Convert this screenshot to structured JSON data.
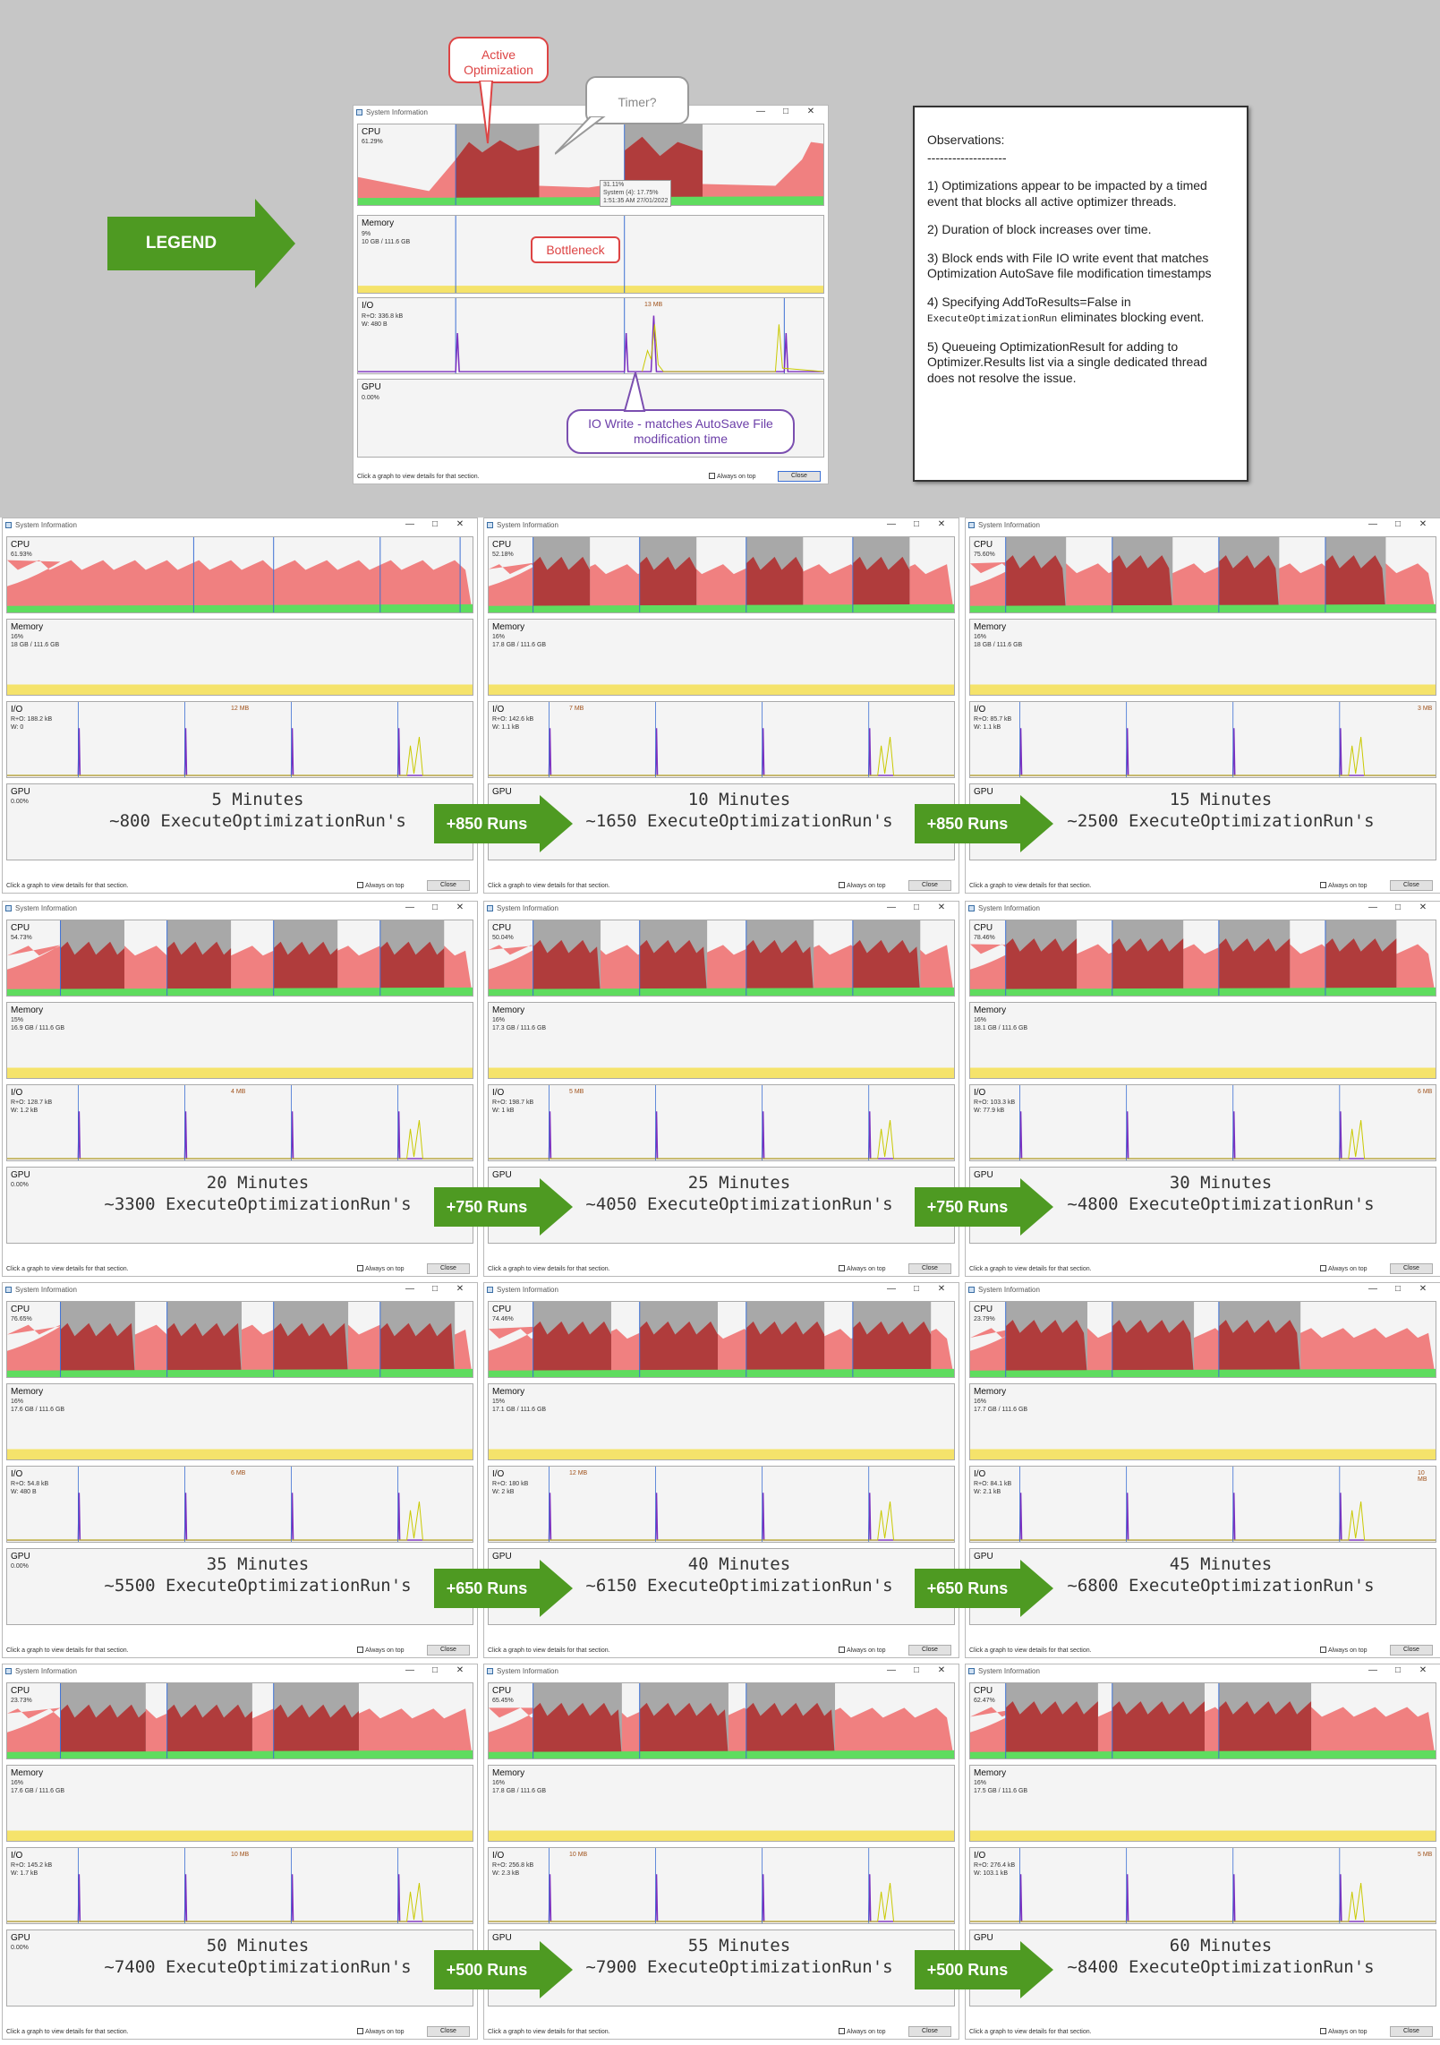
{
  "legend": {
    "label": "LEGEND",
    "window_title": "System Information",
    "cpu_label": "CPU",
    "cpu_value": "61.29%",
    "memory_label": "Memory",
    "memory_value": "9%",
    "memory_detail": "10 GB / 111.6 GB",
    "io_label": "I/O",
    "io_read": "R+O: 336.8 kB",
    "io_write": "W: 480 B",
    "io_peak": "13 MB",
    "gpu_label": "GPU",
    "gpu_value": "0.00%",
    "tooltip_line1": "31.11%",
    "tooltip_line2": "System (4): 17.75%",
    "tooltip_line3": "1:51:35 AM 27/01/2022",
    "footer_hint": "Click a graph to view details for that section.",
    "always_on_top": "Always on top",
    "close_label": "Close",
    "callout_active": "Active\nOptimization",
    "callout_timer": "Timer?",
    "callout_bottleneck": "Bottleneck",
    "callout_io": "IO Write - matches AutoSave File\nmodification time"
  },
  "observations": {
    "title": "Observations:",
    "divider": "-------------------",
    "item1": "1) Optimizations appear to be impacted by a timed event that blocks all active optimizer threads.",
    "item2": "2) Duration of block increases over time.",
    "item3": "3) Block ends with File IO write event that matches Optimization AutoSave file modification timestamps",
    "item4_pre": "4) Specifying AddToResults=False in",
    "item4_code": "ExecuteOptimizationRun",
    "item4_post": " eliminates blocking event.",
    "item5": "5) Queueing OptimizationResult for adding to Optimizer.Results list via a single dedicated thread does not resolve the issue."
  },
  "panel_labels": {
    "window_title": "System Information",
    "cpu": "CPU",
    "memory": "Memory",
    "io": "I/O",
    "gpu": "GPU",
    "footer_hint": "Click a graph to view details for that section.",
    "always_on_top": "Always on top",
    "close": "Close"
  },
  "snapshots": [
    {
      "minutes": "5 Minutes",
      "runs": "~800 ExecuteOptimizationRun's",
      "cpu": "61.93%",
      "mem_pct": "16%",
      "mem_detail": "18 GB / 111.6 GB",
      "io_read": "R+O: 188.2 kB",
      "io_write": "W: 0",
      "io_peak": "12 MB",
      "gpu": "0.00%"
    },
    {
      "minutes": "10 Minutes",
      "runs": "~1650 ExecuteOptimizationRun's",
      "cpu": "52.18%",
      "mem_pct": "16%",
      "mem_detail": "17.8 GB / 111.6 GB",
      "io_read": "R+O: 142.6 kB",
      "io_write": "W: 1.1 kB",
      "io_peak": "7 MB",
      "gpu": ""
    },
    {
      "minutes": "15 Minutes",
      "runs": "~2500 ExecuteOptimizationRun's",
      "cpu": "75.60%",
      "mem_pct": "16%",
      "mem_detail": "18 GB / 111.6 GB",
      "io_read": "R+O: 85.7 kB",
      "io_write": "W: 1.1 kB",
      "io_peak": "3 MB",
      "gpu": ""
    },
    {
      "minutes": "20 Minutes",
      "runs": "~3300 ExecuteOptimizationRun's",
      "cpu": "54.73%",
      "mem_pct": "15%",
      "mem_detail": "16.9 GB / 111.6 GB",
      "io_read": "R+O: 128.7 kB",
      "io_write": "W: 1.2 kB",
      "io_peak": "4 MB",
      "gpu": "0.00%"
    },
    {
      "minutes": "25 Minutes",
      "runs": "~4050 ExecuteOptimizationRun's",
      "cpu": "50.04%",
      "mem_pct": "16%",
      "mem_detail": "17.3 GB / 111.6 GB",
      "io_read": "R+O: 198.7 kB",
      "io_write": "W: 1 kB",
      "io_peak": "5 MB",
      "gpu": ""
    },
    {
      "minutes": "30 Minutes",
      "runs": "~4800 ExecuteOptimizationRun's",
      "cpu": "78.46%",
      "mem_pct": "16%",
      "mem_detail": "18.1 GB / 111.6 GB",
      "io_read": "R+O: 103.3 kB",
      "io_write": "W: 77.9 kB",
      "io_peak": "6 MB",
      "gpu": ""
    },
    {
      "minutes": "35 Minutes",
      "runs": "~5500 ExecuteOptimizationRun's",
      "cpu": "76.65%",
      "mem_pct": "16%",
      "mem_detail": "17.6 GB / 111.6 GB",
      "io_read": "R+O: 54.8 kB",
      "io_write": "W: 480 B",
      "io_peak": "6 MB",
      "gpu": "0.00%"
    },
    {
      "minutes": "40 Minutes",
      "runs": "~6150 ExecuteOptimizationRun's",
      "cpu": "74.46%",
      "mem_pct": "15%",
      "mem_detail": "17.1 GB / 111.6 GB",
      "io_read": "R+O: 180 kB",
      "io_write": "W: 2 kB",
      "io_peak": "12 MB",
      "gpu": ""
    },
    {
      "minutes": "45 Minutes",
      "runs": "~6800 ExecuteOptimizationRun's",
      "cpu": "23.79%",
      "mem_pct": "16%",
      "mem_detail": "17.7 GB / 111.6 GB",
      "io_read": "R+O: 84.1 kB",
      "io_write": "W: 2.1 kB",
      "io_peak": "10 MB",
      "gpu": ""
    },
    {
      "minutes": "50 Minutes",
      "runs": "~7400 ExecuteOptimizationRun's",
      "cpu": "23.73%",
      "mem_pct": "16%",
      "mem_detail": "17.6 GB / 111.6 GB",
      "io_read": "R+O: 145.2 kB",
      "io_write": "W: 1.7 kB",
      "io_peak": "10 MB",
      "gpu": "0.00%"
    },
    {
      "minutes": "55 Minutes",
      "runs": "~7900 ExecuteOptimizationRun's",
      "cpu": "65.45%",
      "mem_pct": "16%",
      "mem_detail": "17.8 GB / 111.6 GB",
      "io_read": "R+O: 256.8 kB",
      "io_write": "W: 2.3 kB",
      "io_peak": "10 MB",
      "gpu": ""
    },
    {
      "minutes": "60 Minutes",
      "runs": "~8400 ExecuteOptimizationRun's",
      "cpu": "62.47%",
      "mem_pct": "16%",
      "mem_detail": "17.5 GB / 111.6 GB",
      "io_read": "R+O: 276.4 kB",
      "io_write": "W: 103.1 kB",
      "io_peak": "5 MB",
      "gpu": ""
    }
  ],
  "row_arrows": [
    "+850 Runs",
    "+750 Runs",
    "+650 Runs",
    "+500 Runs"
  ],
  "colors": {
    "cpu_fill": "#f08080",
    "cpu_block": "#b03c3c",
    "cpu_green": "#5fdc5f",
    "memory_fill": "#f5e36b",
    "io_line": "#e6e600",
    "io_spike": "#7b2fbf",
    "marker": "#3b6fd4",
    "shade": "#a8a8a8",
    "arrow": "#4e9a22"
  }
}
